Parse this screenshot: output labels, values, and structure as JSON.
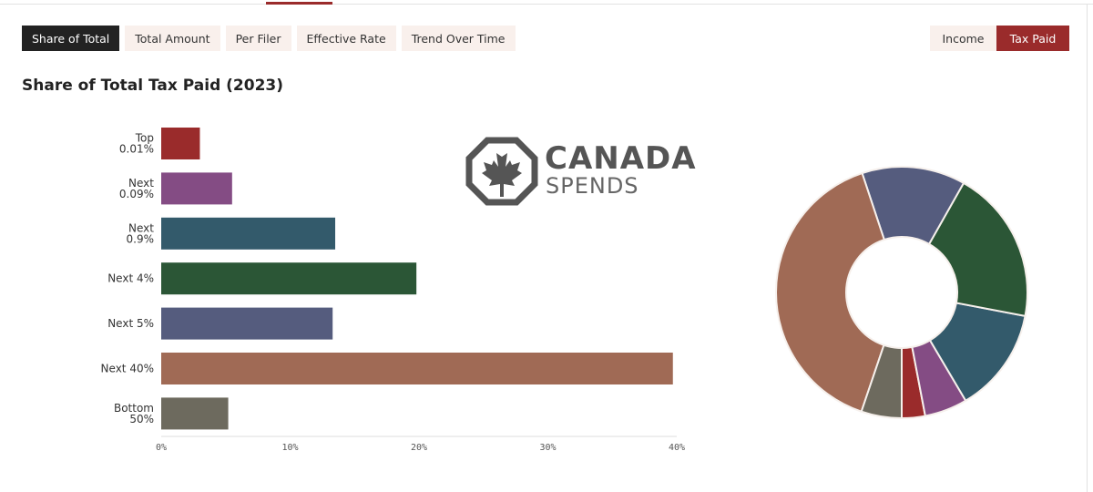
{
  "tabs": [
    {
      "label": "Share of Total",
      "active": true
    },
    {
      "label": "Total Amount",
      "active": false
    },
    {
      "label": "Per Filer",
      "active": false
    },
    {
      "label": "Effective Rate",
      "active": false
    },
    {
      "label": "Trend Over Time",
      "active": false
    }
  ],
  "toggle": {
    "income_label": "Income",
    "tax_paid_label": "Tax Paid",
    "selected": "Tax Paid"
  },
  "logo": {
    "word1": "CANADA",
    "word2": "SPENDS",
    "icon": "maple-leaf-octagon-icon"
  },
  "colors": {
    "accent": "#9a2b2b",
    "tab_bg": "#f9f0ec",
    "active_tab_bg": "#222222"
  },
  "chart_data": [
    {
      "type": "bar",
      "orientation": "horizontal",
      "title": "Share of Total Tax Paid (2023)",
      "categories": [
        [
          "Top",
          "0.01%"
        ],
        [
          "Next",
          "0.09%"
        ],
        [
          "Next",
          "0.9%"
        ],
        [
          "Next 4%"
        ],
        [
          "Next 5%"
        ],
        [
          "Next 40%"
        ],
        [
          "Bottom",
          "50%"
        ]
      ],
      "values": [
        3.0,
        5.5,
        13.5,
        19.8,
        13.3,
        39.7,
        5.2
      ],
      "colors": [
        "#9a2b2b",
        "#844c84",
        "#335a6b",
        "#2b5636",
        "#555c7e",
        "#a06a55",
        "#6d6a5e"
      ],
      "xlim": [
        0,
        40
      ],
      "xticks": [
        "0%",
        "10%",
        "20%",
        "30%",
        "40%"
      ],
      "xlabel": "",
      "ylabel": "",
      "grid": false
    },
    {
      "type": "pie",
      "donut": true,
      "values": [
        3.0,
        5.5,
        13.5,
        19.8,
        13.3,
        39.7,
        5.2
      ],
      "colors": [
        "#9a2b2b",
        "#844c84",
        "#335a6b",
        "#2b5636",
        "#555c7e",
        "#a06a55",
        "#6d6a5e"
      ]
    }
  ]
}
